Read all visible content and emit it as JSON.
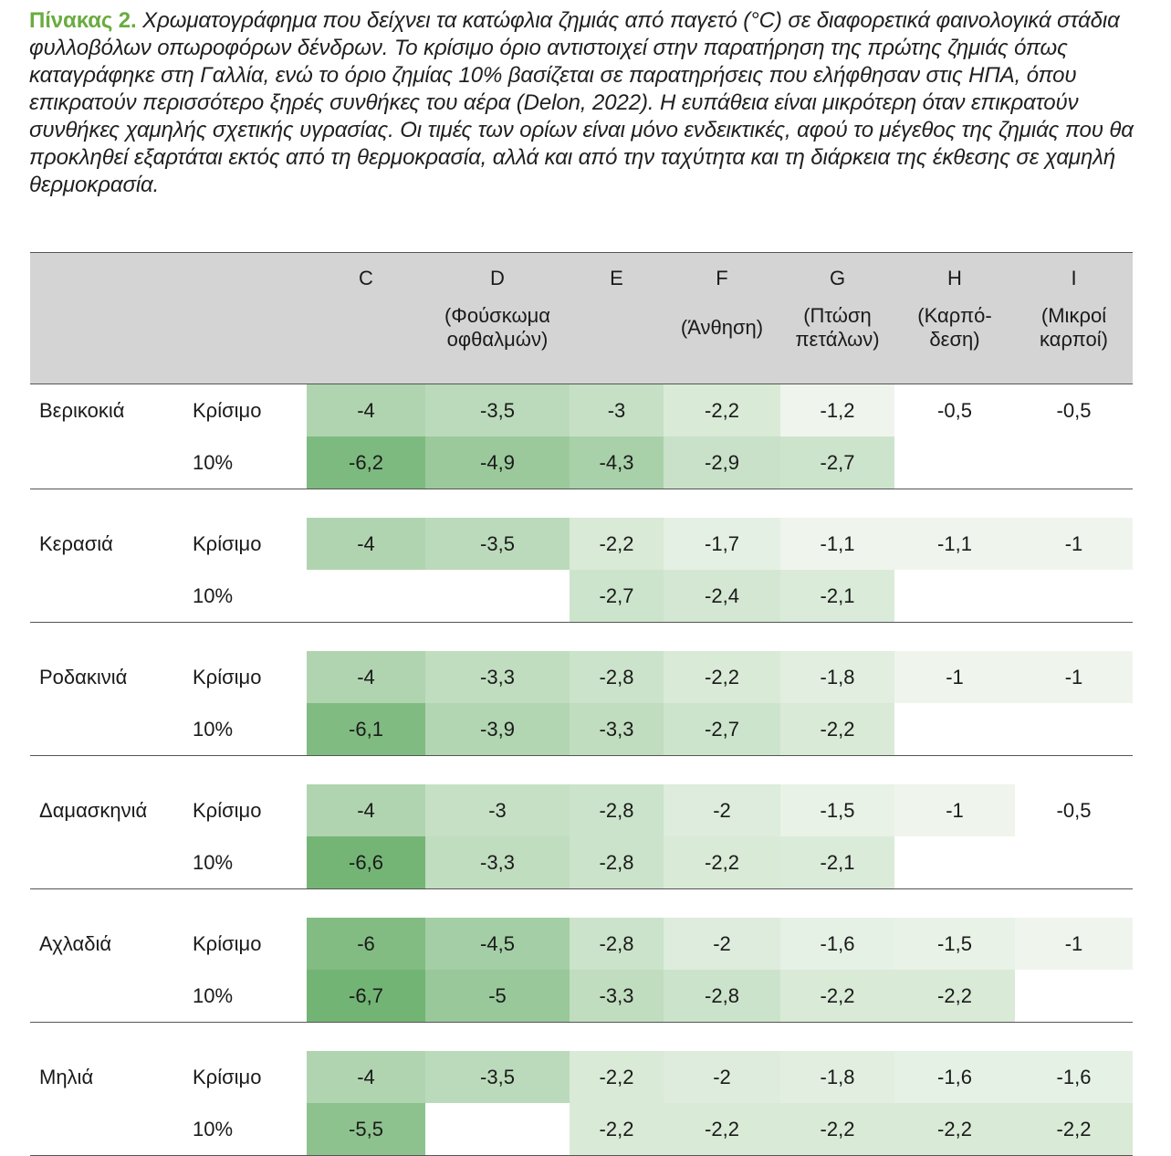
{
  "caption": {
    "label": "Πίνακας 2.",
    "text": " Χρωματογράφημα που δείχνει τα κατώφλια ζημιάς από παγετό (°C) σε διαφορετικά φαινολογικά στάδια φυλλοβόλων οπωροφόρων δένδρων. Το κρίσιμο όριο αντιστοιχεί στην παρατήρηση της πρώτης ζημιάς όπως καταγράφηκε στη Γαλλία, ενώ το όριο ζημίας 10% βασίζεται σε παρατηρήσεις που ελήφθησαν στις ΗΠΑ, όπου επικρατούν περισσότερο ξηρές συνθήκες του αέρα (Delon, 2022). Η ευπάθεια είναι μικρότερη όταν επικρατούν συνθήκες χαμηλής σχετικής υγρασίας. Οι τιμές των ορίων είναι μόνο ενδεικτικές, αφού το μέγεθος της ζημιάς που θα προκληθεί εξαρτάται εκτός από τη θερμοκρασία, αλλά και από την ταχύτητα και τη διάρκεια της έκθεσης σε χαμηλή θερμοκρασία."
  },
  "stages": [
    {
      "code": "C",
      "desc": ""
    },
    {
      "code": "D",
      "desc": "(Φούσκωμα οφθαλμών)"
    },
    {
      "code": "E",
      "desc": ""
    },
    {
      "code": "F",
      "desc": "(Άνθηση)"
    },
    {
      "code": "G",
      "desc": "(Πτώση πετάλων)"
    },
    {
      "code": "H",
      "desc": "(Καρπό-δεση)"
    },
    {
      "code": "I",
      "desc": "(Μικροί καρποί)"
    }
  ],
  "crops": [
    {
      "name": "Βερικοκιά",
      "critical": {
        "label": "Κρίσιμο",
        "values": [
          "-4",
          "-3,5",
          "-3",
          "-2,2",
          "-1,2",
          "-0,5",
          "-0,5"
        ]
      },
      "ten": {
        "label": "10%",
        "values": [
          "-6,2",
          "-4,9",
          "-4,3",
          "-2,9",
          "-2,7",
          "",
          ""
        ]
      }
    },
    {
      "name": "Κερασιά",
      "critical": {
        "label": "Κρίσιμο",
        "values": [
          "-4",
          "-3,5",
          "-2,2",
          "-1,7",
          "-1,1",
          "-1,1",
          "-1"
        ]
      },
      "ten": {
        "label": "10%",
        "values": [
          "",
          "",
          "-2,7",
          "-2,4",
          "-2,1",
          "",
          ""
        ]
      }
    },
    {
      "name": "Ροδακινιά",
      "critical": {
        "label": "Κρίσιμο",
        "values": [
          "-4",
          "-3,3",
          "-2,8",
          "-2,2",
          "-1,8",
          "-1",
          "-1"
        ]
      },
      "ten": {
        "label": "10%",
        "values": [
          "-6,1",
          "-3,9",
          "-3,3",
          "-2,7",
          "-2,2",
          "",
          ""
        ]
      }
    },
    {
      "name": "Δαμασκηνιά",
      "critical": {
        "label": "Κρίσιμο",
        "values": [
          "-4",
          "-3",
          "-2,8",
          "-2",
          "-1,5",
          "-1",
          "-0,5"
        ]
      },
      "ten": {
        "label": "10%",
        "values": [
          "-6,6",
          "-3,3",
          "-2,8",
          "-2,2",
          "-2,1",
          "",
          ""
        ]
      }
    },
    {
      "name": "Αχλαδιά",
      "critical": {
        "label": "Κρίσιμο",
        "values": [
          "-6",
          "-4,5",
          "-2,8",
          "-2",
          "-1,6",
          "-1,5",
          "-1"
        ]
      },
      "ten": {
        "label": "10%",
        "values": [
          "-6,7",
          "-5",
          "-3,3",
          "-2,8",
          "-2,2",
          "-2,2",
          ""
        ]
      }
    },
    {
      "name": "Μηλιά",
      "critical": {
        "label": "Κρίσιμο",
        "values": [
          "-4",
          "-3,5",
          "-2,2",
          "-2",
          "-1,8",
          "-1,6",
          "-1,6"
        ]
      },
      "ten": {
        "label": "10%",
        "values": [
          "-5,5",
          "",
          "-2,2",
          "-2,2",
          "-2,2",
          "-2,2",
          "-2,2"
        ]
      }
    }
  ],
  "colors": {
    "header_bg": "#d4d4d4",
    "caption_label": "#6aac3f",
    "scale_light": "#f4f8f2",
    "scale_dark": "#72b474"
  }
}
